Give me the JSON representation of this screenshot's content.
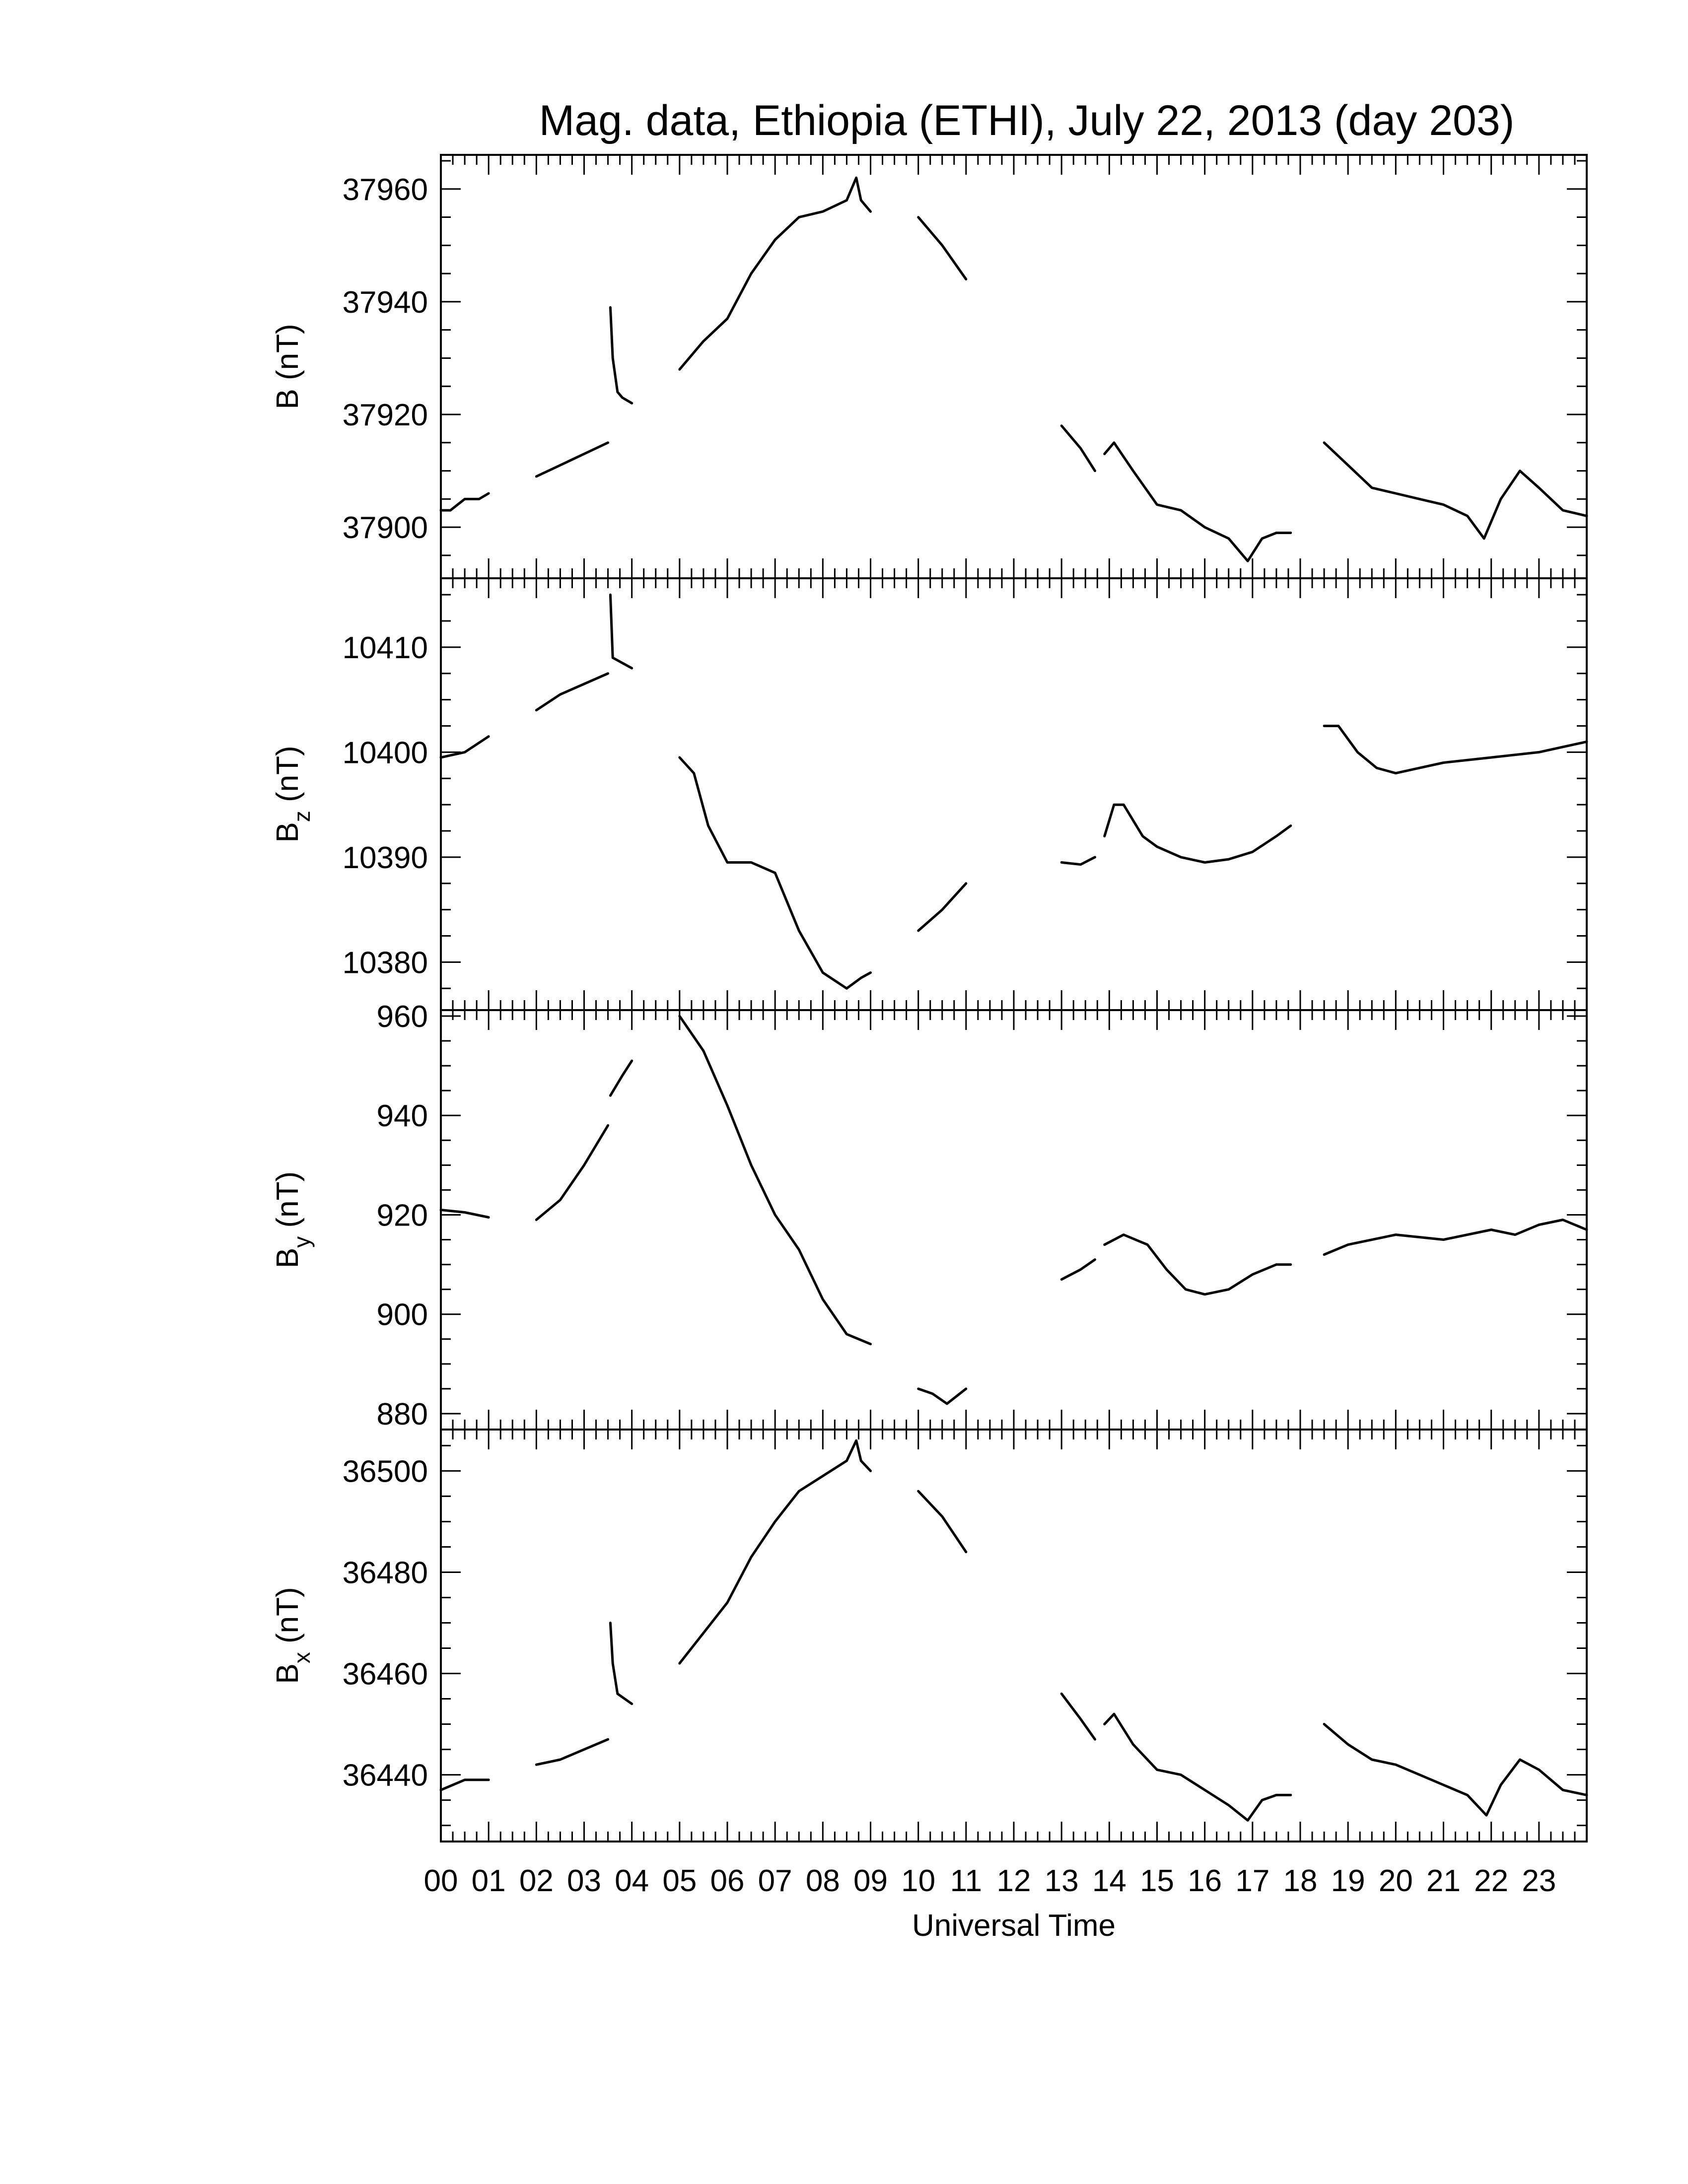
{
  "chart_data": {
    "type": "line",
    "title": "Mag. data, Ethiopia (ETHI), July 22, 2013 (day 203)",
    "xlabel": "Universal Time",
    "x_ticks": [
      "00",
      "01",
      "02",
      "03",
      "04",
      "05",
      "06",
      "07",
      "08",
      "09",
      "10",
      "11",
      "12",
      "13",
      "14",
      "15",
      "16",
      "17",
      "18",
      "19",
      "20",
      "21",
      "22",
      "23"
    ],
    "xlim": [
      0,
      24
    ],
    "x_unit": "hours UT",
    "panels": [
      {
        "ylabel_main": "B",
        "ylabel_sub": "",
        "ylabel_unit": "(nT)",
        "ylim": [
          37892,
          37965
        ],
        "yticks": [
          37900,
          37920,
          37940,
          37960
        ],
        "segments": [
          [
            [
              0.0,
              37903
            ],
            [
              0.2,
              37903
            ],
            [
              0.5,
              37905
            ],
            [
              0.8,
              37905
            ],
            [
              1.0,
              37906
            ]
          ],
          [
            [
              2.0,
              37909
            ],
            [
              2.5,
              37911
            ],
            [
              3.0,
              37913
            ],
            [
              3.5,
              37915
            ]
          ],
          [
            [
              3.55,
              37939
            ],
            [
              3.6,
              37930
            ],
            [
              3.7,
              37924
            ],
            [
              3.8,
              37923
            ],
            [
              4.0,
              37922
            ]
          ],
          [
            [
              5.0,
              37928
            ],
            [
              5.5,
              37933
            ],
            [
              6.0,
              37937
            ],
            [
              6.5,
              37945
            ],
            [
              7.0,
              37951
            ],
            [
              7.5,
              37955
            ],
            [
              8.0,
              37956
            ],
            [
              8.5,
              37958
            ],
            [
              8.7,
              37962
            ],
            [
              8.8,
              37958
            ],
            [
              9.0,
              37956
            ]
          ],
          [
            [
              10.0,
              37955
            ],
            [
              10.5,
              37950
            ],
            [
              11.0,
              37944
            ]
          ],
          [
            [
              13.0,
              37918
            ],
            [
              13.4,
              37914
            ],
            [
              13.7,
              37910
            ]
          ],
          [
            [
              13.9,
              37913
            ],
            [
              14.1,
              37915
            ],
            [
              14.5,
              37910
            ],
            [
              15.0,
              37904
            ],
            [
              15.5,
              37903
            ],
            [
              16.0,
              37900
            ],
            [
              16.5,
              37898
            ],
            [
              16.9,
              37894
            ],
            [
              17.2,
              37898
            ],
            [
              17.5,
              37899
            ],
            [
              17.8,
              37899
            ]
          ],
          [
            [
              18.5,
              37915
            ],
            [
              19.0,
              37911
            ],
            [
              19.5,
              37907
            ],
            [
              20.0,
              37906
            ],
            [
              20.5,
              37905
            ],
            [
              21.0,
              37904
            ],
            [
              21.5,
              37902
            ],
            [
              21.85,
              37898
            ],
            [
              22.2,
              37905
            ],
            [
              22.6,
              37910
            ],
            [
              23.0,
              37907
            ],
            [
              23.5,
              37903
            ],
            [
              24.0,
              37902
            ]
          ]
        ]
      },
      {
        "ylabel_main": "B",
        "ylabel_sub": "z",
        "ylabel_unit": "(nT)",
        "ylim": [
          10376,
          10416
        ],
        "yticks": [
          10380,
          10390,
          10400,
          10410
        ],
        "segments": [
          [
            [
              0.0,
              10399.5
            ],
            [
              0.5,
              10400
            ],
            [
              1.0,
              10401.5
            ]
          ],
          [
            [
              2.0,
              10404
            ],
            [
              2.5,
              10405.5
            ],
            [
              3.0,
              10406.5
            ],
            [
              3.5,
              10407.5
            ]
          ],
          [
            [
              3.55,
              10415
            ],
            [
              3.6,
              10409
            ],
            [
              4.0,
              10408
            ]
          ],
          [
            [
              5.0,
              10399.5
            ],
            [
              5.3,
              10398
            ],
            [
              5.6,
              10393
            ],
            [
              6.0,
              10389.5
            ],
            [
              6.5,
              10389.5
            ],
            [
              7.0,
              10388.5
            ],
            [
              7.5,
              10383
            ],
            [
              8.0,
              10379
            ],
            [
              8.5,
              10377.5
            ],
            [
              8.8,
              10378.5
            ],
            [
              9.0,
              10379
            ]
          ],
          [
            [
              10.0,
              10383
            ],
            [
              10.5,
              10385
            ],
            [
              11.0,
              10387.5
            ]
          ],
          [
            [
              13.0,
              10389.5
            ],
            [
              13.4,
              10389.3
            ],
            [
              13.7,
              10390
            ]
          ],
          [
            [
              13.9,
              10392
            ],
            [
              14.1,
              10395
            ],
            [
              14.3,
              10395
            ],
            [
              14.7,
              10392
            ],
            [
              15.0,
              10391
            ],
            [
              15.5,
              10390
            ],
            [
              16.0,
              10389.5
            ],
            [
              16.5,
              10389.8
            ],
            [
              17.0,
              10390.5
            ],
            [
              17.5,
              10392
            ],
            [
              17.8,
              10393
            ]
          ],
          [
            [
              18.5,
              10402.5
            ],
            [
              18.8,
              10402.5
            ],
            [
              19.2,
              10400
            ],
            [
              19.6,
              10398.5
            ],
            [
              20.0,
              10398
            ],
            [
              20.5,
              10398.5
            ],
            [
              21.0,
              10399
            ],
            [
              22.0,
              10399.5
            ],
            [
              23.0,
              10400
            ],
            [
              24.0,
              10401
            ]
          ]
        ]
      },
      {
        "ylabel_main": "B",
        "ylabel_sub": "y",
        "ylabel_unit": "(nT)",
        "ylim": [
          878,
          960
        ],
        "yticks": [
          880,
          900,
          920,
          940,
          960
        ],
        "segments": [
          [
            [
              0.0,
              921
            ],
            [
              0.5,
              920.5
            ],
            [
              1.0,
              919.5
            ]
          ],
          [
            [
              2.0,
              919
            ],
            [
              2.5,
              923
            ],
            [
              3.0,
              930
            ],
            [
              3.5,
              938
            ]
          ],
          [
            [
              3.55,
              944
            ],
            [
              3.8,
              948
            ],
            [
              4.0,
              951
            ]
          ],
          [
            [
              5.0,
              960
            ],
            [
              5.5,
              953
            ],
            [
              6.0,
              942
            ],
            [
              6.5,
              930
            ],
            [
              7.0,
              920
            ],
            [
              7.5,
              913
            ],
            [
              8.0,
              903
            ],
            [
              8.5,
              896
            ],
            [
              9.0,
              894
            ]
          ],
          [
            [
              10.0,
              885
            ],
            [
              10.3,
              884
            ],
            [
              10.6,
              882
            ],
            [
              11.0,
              885
            ]
          ],
          [
            [
              13.0,
              907
            ],
            [
              13.4,
              909
            ],
            [
              13.7,
              911
            ]
          ],
          [
            [
              13.9,
              914
            ],
            [
              14.3,
              916
            ],
            [
              14.8,
              914
            ],
            [
              15.2,
              909
            ],
            [
              15.6,
              905
            ],
            [
              16.0,
              904
            ],
            [
              16.5,
              905
            ],
            [
              17.0,
              908
            ],
            [
              17.5,
              910
            ],
            [
              17.8,
              910
            ]
          ],
          [
            [
              18.5,
              912
            ],
            [
              19.0,
              914
            ],
            [
              20.0,
              916
            ],
            [
              21.0,
              915
            ],
            [
              22.0,
              917
            ],
            [
              22.5,
              916
            ],
            [
              23.0,
              918
            ],
            [
              23.5,
              919
            ],
            [
              24.0,
              917
            ]
          ]
        ]
      },
      {
        "ylabel_main": "B",
        "ylabel_sub": "x",
        "ylabel_unit": "(nT)",
        "ylim": [
          36428,
          36507
        ],
        "yticks": [
          36440,
          36460,
          36480,
          36500
        ],
        "segments": [
          [
            [
              0.0,
              36437
            ],
            [
              0.5,
              36439
            ],
            [
              1.0,
              36439
            ]
          ],
          [
            [
              2.0,
              36442
            ],
            [
              2.5,
              36443
            ],
            [
              3.0,
              36445
            ],
            [
              3.5,
              36447
            ]
          ],
          [
            [
              3.55,
              36470
            ],
            [
              3.6,
              36462
            ],
            [
              3.7,
              36456
            ],
            [
              4.0,
              36454
            ]
          ],
          [
            [
              5.0,
              36462
            ],
            [
              5.5,
              36468
            ],
            [
              6.0,
              36474
            ],
            [
              6.5,
              36483
            ],
            [
              7.0,
              36490
            ],
            [
              7.5,
              36496
            ],
            [
              8.0,
              36499
            ],
            [
              8.5,
              36502
            ],
            [
              8.7,
              36506
            ],
            [
              8.8,
              36502
            ],
            [
              9.0,
              36500
            ]
          ],
          [
            [
              10.0,
              36496
            ],
            [
              10.5,
              36491
            ],
            [
              11.0,
              36484
            ]
          ],
          [
            [
              13.0,
              36456
            ],
            [
              13.4,
              36451
            ],
            [
              13.7,
              36447
            ]
          ],
          [
            [
              13.9,
              36450
            ],
            [
              14.1,
              36452
            ],
            [
              14.5,
              36446
            ],
            [
              15.0,
              36441
            ],
            [
              15.5,
              36440
            ],
            [
              16.0,
              36437
            ],
            [
              16.5,
              36434
            ],
            [
              16.9,
              36431
            ],
            [
              17.2,
              36435
            ],
            [
              17.5,
              36436
            ],
            [
              17.8,
              36436
            ]
          ],
          [
            [
              18.5,
              36450
            ],
            [
              19.0,
              36446
            ],
            [
              19.5,
              36443
            ],
            [
              20.0,
              36442
            ],
            [
              20.5,
              36440
            ],
            [
              21.0,
              36438
            ],
            [
              21.5,
              36436
            ],
            [
              21.9,
              36432
            ],
            [
              22.2,
              36438
            ],
            [
              22.6,
              36443
            ],
            [
              23.0,
              36441
            ],
            [
              23.5,
              36437
            ],
            [
              24.0,
              36436
            ]
          ]
        ]
      }
    ]
  }
}
